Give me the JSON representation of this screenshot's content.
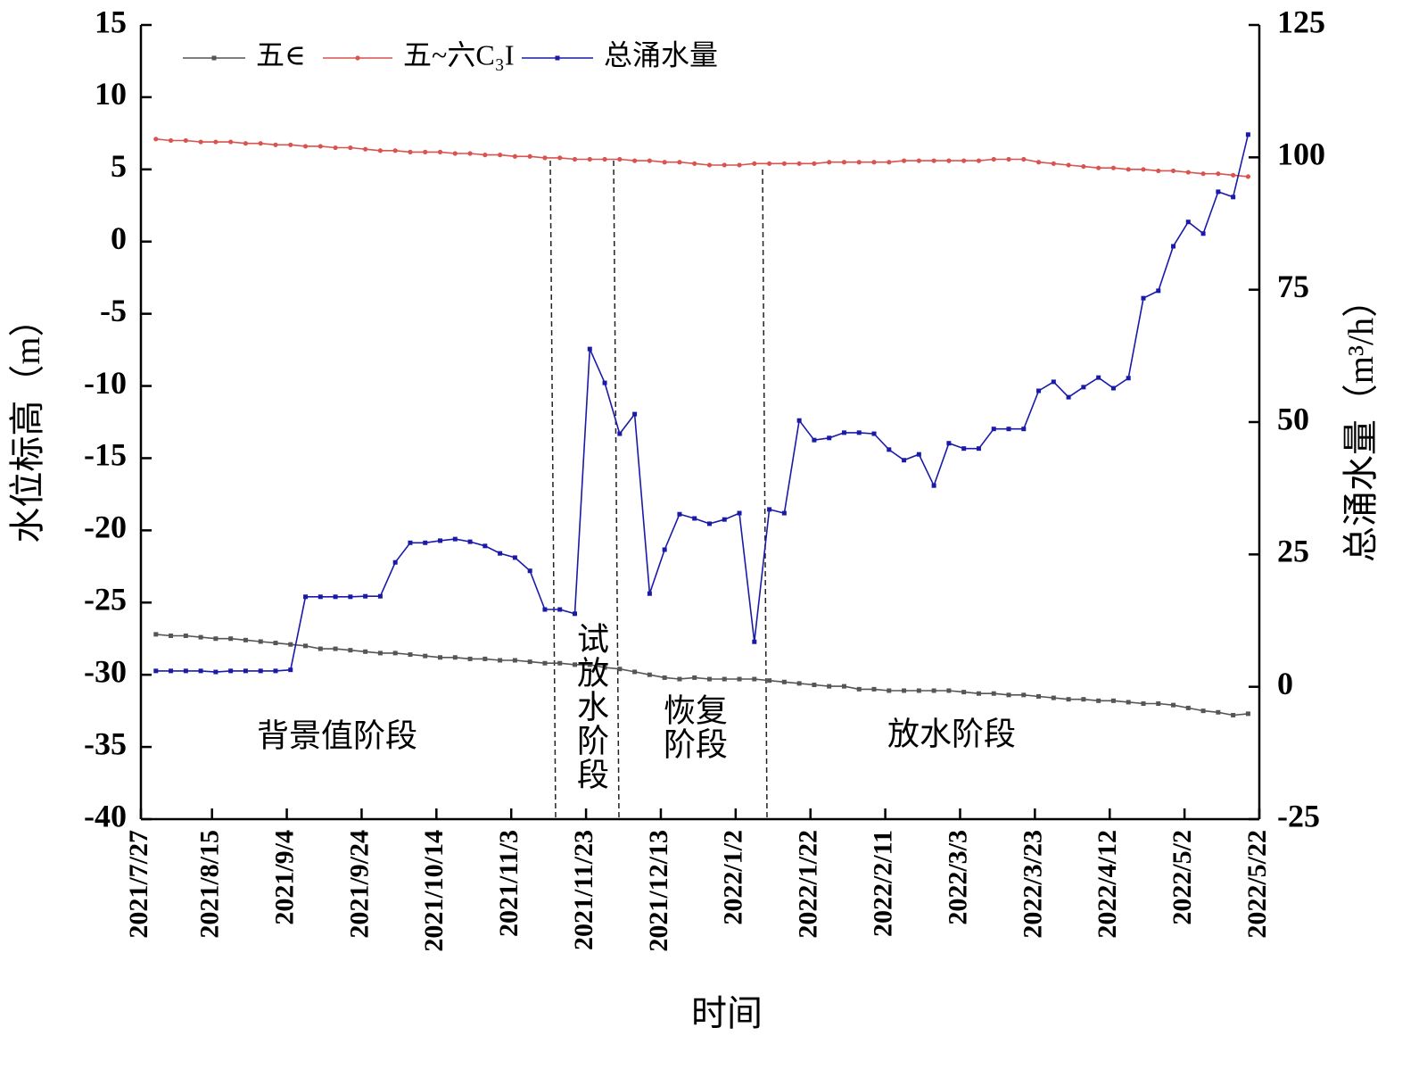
{
  "chart_data": {
    "type": "line",
    "x_label": "时间",
    "y_label": "水位标高（m）",
    "y2_label": "总涌水量（m³/h）",
    "x": [
      "2021/7/31",
      "2021/8/4",
      "2021/8/8",
      "2021/8/12",
      "2021/8/16",
      "2021/8/20",
      "2021/8/24",
      "2021/8/28",
      "2021/9/1",
      "2021/9/5",
      "2021/9/9",
      "2021/9/13",
      "2021/9/17",
      "2021/9/21",
      "2021/9/25",
      "2021/9/29",
      "2021/10/3",
      "2021/10/7",
      "2021/10/11",
      "2021/10/15",
      "2021/10/19",
      "2021/10/23",
      "2021/10/27",
      "2021/10/31",
      "2021/11/4",
      "2021/11/8",
      "2021/11/12",
      "2021/11/16",
      "2021/11/20",
      "2021/11/24",
      "2021/11/28",
      "2021/12/2",
      "2021/12/6",
      "2021/12/10",
      "2021/12/14",
      "2021/12/18",
      "2021/12/22",
      "2021/12/26",
      "2021/12/30",
      "2022/1/3",
      "2022/1/7",
      "2022/1/11",
      "2022/1/15",
      "2022/1/19",
      "2022/1/23",
      "2022/1/27",
      "2022/1/31",
      "2022/2/4",
      "2022/2/8",
      "2022/2/12",
      "2022/2/16",
      "2022/2/20",
      "2022/2/24",
      "2022/2/28",
      "2022/3/4",
      "2022/3/8",
      "2022/3/12",
      "2022/3/16",
      "2022/3/20",
      "2022/3/24",
      "2022/3/28",
      "2022/4/1",
      "2022/4/5",
      "2022/4/9",
      "2022/4/13",
      "2022/4/17",
      "2022/4/21",
      "2022/4/25",
      "2022/4/29",
      "2022/5/3",
      "2022/5/7",
      "2022/5/11",
      "2022/5/15",
      "2022/5/19"
    ],
    "series": [
      {
        "name": "五∈",
        "color": "#555555",
        "marker": "square",
        "axis": "y",
        "values": [
          -27.2,
          -27.3,
          -27.3,
          -27.4,
          -27.5,
          -27.5,
          -27.6,
          -27.7,
          -27.8,
          -27.9,
          -28.0,
          -28.2,
          -28.2,
          -28.3,
          -28.4,
          -28.5,
          -28.5,
          -28.6,
          -28.7,
          -28.8,
          -28.8,
          -28.9,
          -28.9,
          -29.0,
          -29.0,
          -29.1,
          -29.2,
          -29.2,
          -29.3,
          -29.3,
          -29.5,
          -29.6,
          -29.8,
          -30.0,
          -30.2,
          -30.3,
          -30.2,
          -30.3,
          -30.3,
          -30.3,
          -30.3,
          -30.4,
          -30.5,
          -30.6,
          -30.7,
          -30.8,
          -30.8,
          -31.0,
          -31.0,
          -31.1,
          -31.1,
          -31.1,
          -31.1,
          -31.1,
          -31.2,
          -31.3,
          -31.3,
          -31.4,
          -31.4,
          -31.5,
          -31.6,
          -31.7,
          -31.7,
          -31.8,
          -31.8,
          -31.9,
          -32.0,
          -32.0,
          -32.1,
          -32.3,
          -32.5,
          -32.6,
          -32.8,
          -32.7
        ]
      },
      {
        "name": "五~六C₃I",
        "color": "#d9534f",
        "marker": "circle",
        "axis": "y",
        "values": [
          7.1,
          7.0,
          7.0,
          6.9,
          6.9,
          6.9,
          6.8,
          6.8,
          6.7,
          6.7,
          6.6,
          6.6,
          6.5,
          6.5,
          6.4,
          6.3,
          6.3,
          6.2,
          6.2,
          6.2,
          6.1,
          6.1,
          6.0,
          6.0,
          5.9,
          5.9,
          5.8,
          5.8,
          5.7,
          5.7,
          5.7,
          5.7,
          5.6,
          5.6,
          5.5,
          5.5,
          5.4,
          5.3,
          5.3,
          5.3,
          5.4,
          5.4,
          5.4,
          5.4,
          5.4,
          5.5,
          5.5,
          5.5,
          5.5,
          5.5,
          5.6,
          5.6,
          5.6,
          5.6,
          5.6,
          5.6,
          5.7,
          5.7,
          5.7,
          5.5,
          5.4,
          5.3,
          5.2,
          5.1,
          5.1,
          5.0,
          5.0,
          4.9,
          4.9,
          4.8,
          4.7,
          4.7,
          4.6,
          4.5
        ]
      },
      {
        "name": "总涌水量",
        "color": "#1a1aa8",
        "marker": "square",
        "axis": "y2",
        "values": [
          3,
          3,
          3,
          3,
          2.8,
          3,
          3,
          3,
          3,
          3.2,
          17,
          17,
          17,
          17,
          17.1,
          17.1,
          23.5,
          27.2,
          27.2,
          27.6,
          27.9,
          27.4,
          26.6,
          25.2,
          24.4,
          21.9,
          14.6,
          14.6,
          13.8,
          63.8,
          57.4,
          47.8,
          51.5,
          17.6,
          25.9,
          32.6,
          31.8,
          30.8,
          31.6,
          32.8,
          8.5,
          33.5,
          32.8,
          50.3,
          46.6,
          47.0,
          48.0,
          48.0,
          47.8,
          44.8,
          42.8,
          43.9,
          38.0,
          46.0,
          45.0,
          45.0,
          48.7,
          48.7,
          48.7,
          55.9,
          57.6,
          54.7,
          56.6,
          58.4,
          56.4,
          58.3,
          73.4,
          74.8,
          83.2,
          87.8,
          85.6,
          93.5,
          92.5,
          104.3
        ]
      }
    ],
    "xlim": [
      "2021/7/27",
      "2022/5/22"
    ],
    "xticks": [
      "2021/7/27",
      "2021/8/15",
      "2021/9/4",
      "2021/9/24",
      "2021/10/14",
      "2021/11/3",
      "2021/11/23",
      "2021/12/13",
      "2022/1/2",
      "2022/1/22",
      "2022/2/11",
      "2022/3/3",
      "2022/3/23",
      "2022/4/12",
      "2022/5/2",
      "2022/5/22"
    ],
    "ylim": [
      -40,
      15
    ],
    "yticks": [
      -40,
      -35,
      -30,
      -25,
      -20,
      -15,
      -10,
      -5,
      0,
      5,
      10,
      15
    ],
    "y2lim": [
      -25,
      125
    ],
    "y2ticks": [
      -25,
      0,
      25,
      50,
      75,
      100,
      125
    ],
    "legend": "top-left",
    "annotations": [
      [
        "背景值阶段"
      ],
      [
        "试",
        "放",
        "水",
        "阶",
        "段"
      ],
      [
        "恢复",
        "阶段"
      ],
      [
        "放水阶段"
      ]
    ]
  }
}
